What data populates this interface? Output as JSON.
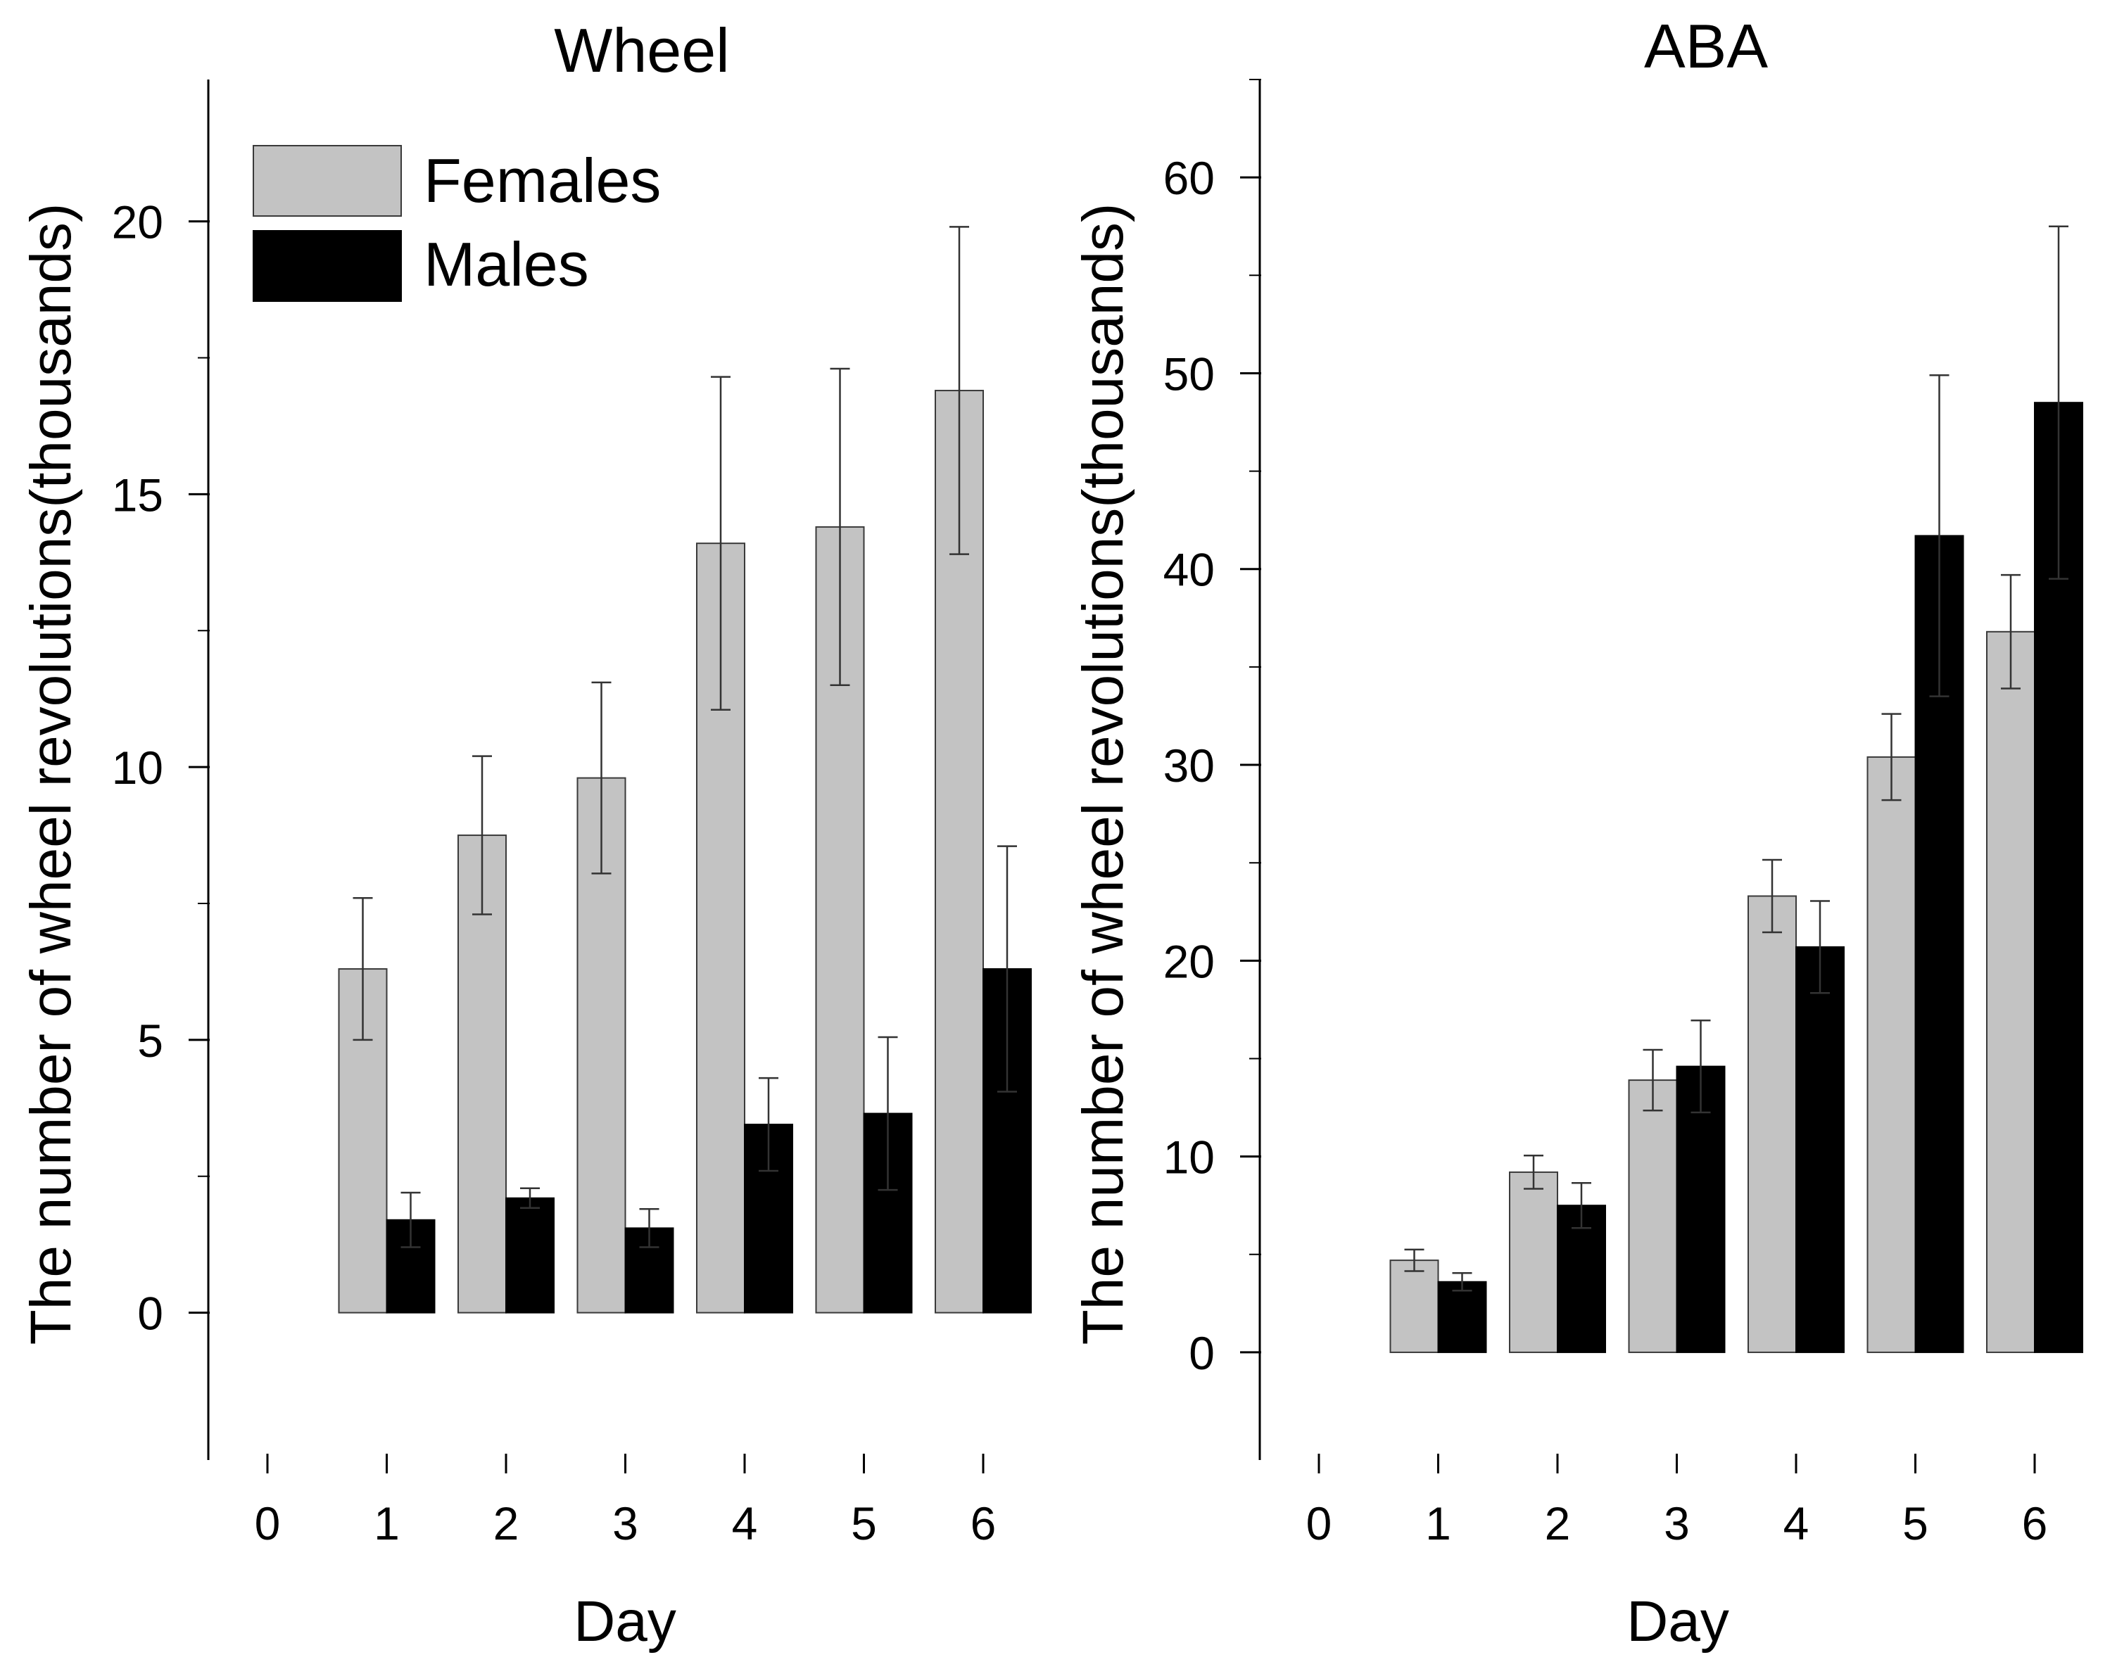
{
  "colors": {
    "females": "#c3c3c3",
    "males": "#000000",
    "background": "#ffffff"
  },
  "chart_data": [
    {
      "type": "bar",
      "title": "Wheel",
      "xlabel": "Day",
      "ylabel": "The number of wheel revolutions(thousands)",
      "x_ticks": [
        "0",
        "1",
        "2",
        "3",
        "4",
        "5",
        "6"
      ],
      "categories": [
        "1",
        "2",
        "3",
        "4",
        "5",
        "6"
      ],
      "xlim": [
        -0.5,
        6.5
      ],
      "ylim": [
        -2.7,
        22.6
      ],
      "y_ticks": [
        0,
        5,
        10,
        15,
        20
      ],
      "y_minor_ticks": [
        2.5,
        7.5,
        12.5,
        17.5
      ],
      "legend": {
        "position": "top-left",
        "entries": [
          "Females",
          "Males"
        ]
      },
      "series": [
        {
          "name": "Females",
          "values": [
            6.3,
            8.75,
            9.8,
            14.1,
            14.4,
            16.9
          ],
          "errors": [
            1.3,
            1.45,
            1.75,
            3.05,
            2.9,
            3.0
          ]
        },
        {
          "name": "Males",
          "values": [
            1.7,
            2.1,
            1.55,
            3.45,
            3.65,
            6.3
          ],
          "errors": [
            0.5,
            0.18,
            0.35,
            0.85,
            1.4,
            2.25
          ]
        }
      ]
    },
    {
      "type": "bar",
      "title": "ABA",
      "xlabel": "Day",
      "ylabel": "The number of wheel revolutions(thousands)",
      "x_ticks": [
        "0",
        "1",
        "2",
        "3",
        "4",
        "5",
        "6"
      ],
      "categories": [
        "1",
        "2",
        "3",
        "4",
        "5",
        "6"
      ],
      "xlim": [
        -0.5,
        6.5
      ],
      "ylim": [
        -5.5,
        65
      ],
      "y_ticks": [
        0,
        10,
        20,
        30,
        40,
        50,
        60
      ],
      "y_minor_ticks": [
        5,
        15,
        25,
        35,
        45,
        55,
        65
      ],
      "series": [
        {
          "name": "Females",
          "values": [
            4.7,
            9.2,
            13.9,
            23.3,
            30.4,
            36.8
          ],
          "errors": [
            0.55,
            0.85,
            1.55,
            1.85,
            2.2,
            2.9
          ]
        },
        {
          "name": "Males",
          "values": [
            3.6,
            7.5,
            14.6,
            20.7,
            41.7,
            48.5
          ],
          "errors": [
            0.45,
            1.15,
            2.35,
            2.35,
            8.2,
            9.0
          ]
        }
      ]
    }
  ]
}
